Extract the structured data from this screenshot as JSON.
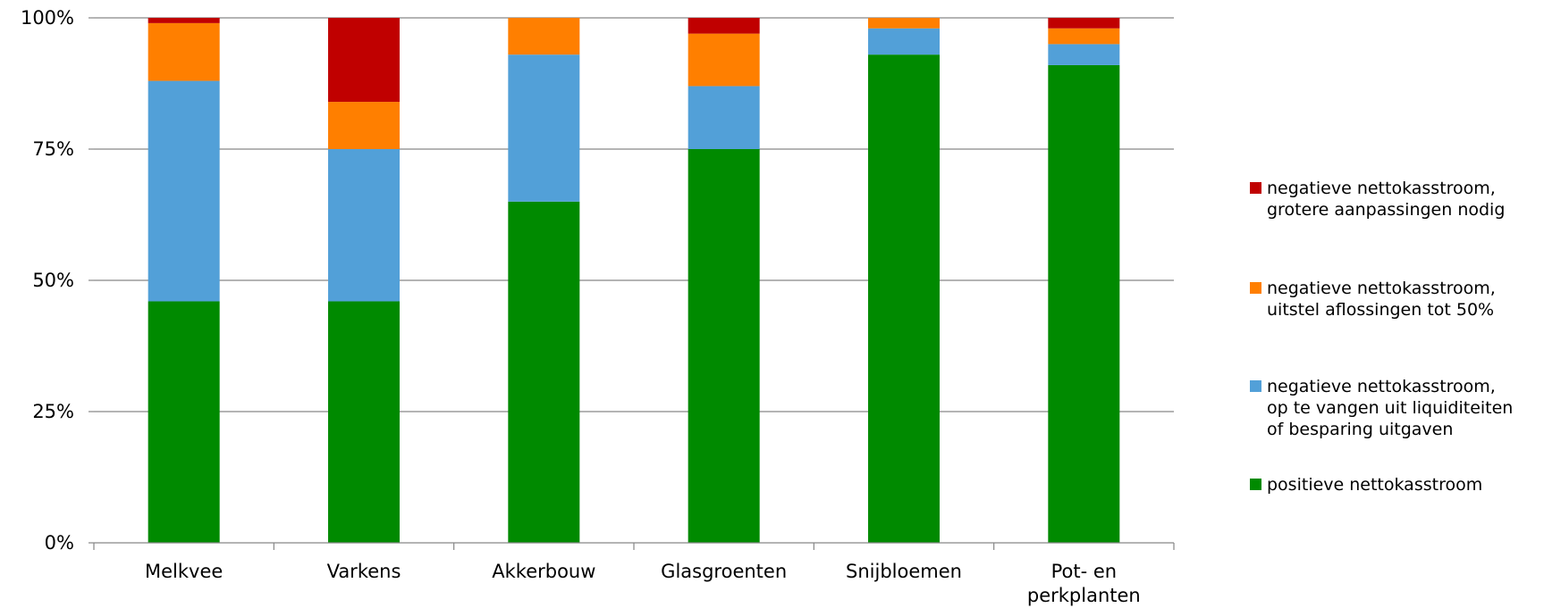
{
  "chart_data": {
    "type": "bar",
    "stacked": true,
    "normalized": true,
    "title": "",
    "xlabel": "",
    "ylabel": "",
    "ylim": [
      0,
      100
    ],
    "y_ticks": [
      {
        "value": 0,
        "label": "0%"
      },
      {
        "value": 25,
        "label": "25%"
      },
      {
        "value": 50,
        "label": "50%"
      },
      {
        "value": 75,
        "label": "75%"
      },
      {
        "value": 100,
        "label": "100%"
      }
    ],
    "grid": "horizontal",
    "legend_position": "right",
    "categories": [
      {
        "id": "melkvee",
        "lines": [
          "Melkvee"
        ]
      },
      {
        "id": "varkens",
        "lines": [
          "Varkens"
        ]
      },
      {
        "id": "akkerbouw",
        "lines": [
          "Akkerbouw"
        ]
      },
      {
        "id": "glasgroenten",
        "lines": [
          "Glasgroenten"
        ]
      },
      {
        "id": "snijbloemen",
        "lines": [
          "Snijbloemen"
        ]
      },
      {
        "id": "pot-en-perkplanten",
        "lines": [
          "Pot- en",
          "perkplanten"
        ]
      }
    ],
    "series": [
      {
        "id": "positief",
        "lines": [
          "positieve nettokasstroom"
        ],
        "color": "#008a00",
        "values": [
          46,
          46,
          65,
          75,
          93,
          91
        ]
      },
      {
        "id": "liquiditeiten",
        "lines": [
          "negatieve nettokasstroom,",
          "op te vangen uit liquiditeiten",
          "of besparing uitgaven"
        ],
        "color": "#52a0d8",
        "values": [
          42,
          29,
          28,
          12,
          5,
          4
        ]
      },
      {
        "id": "uitstel",
        "lines": [
          "negatieve nettokasstroom,",
          "uitstel aflossingen tot 50%"
        ],
        "color": "#ff7f00",
        "values": [
          11,
          9,
          7,
          10,
          2,
          3
        ]
      },
      {
        "id": "aanpassingen",
        "lines": [
          "negatieve nettokasstroom,",
          "grotere aanpassingen nodig"
        ],
        "color": "#c00000",
        "values": [
          1,
          16,
          0,
          3,
          0,
          2
        ]
      }
    ],
    "legend_order": [
      "aanpassingen",
      "uitstel",
      "liquiditeiten",
      "positief"
    ]
  }
}
